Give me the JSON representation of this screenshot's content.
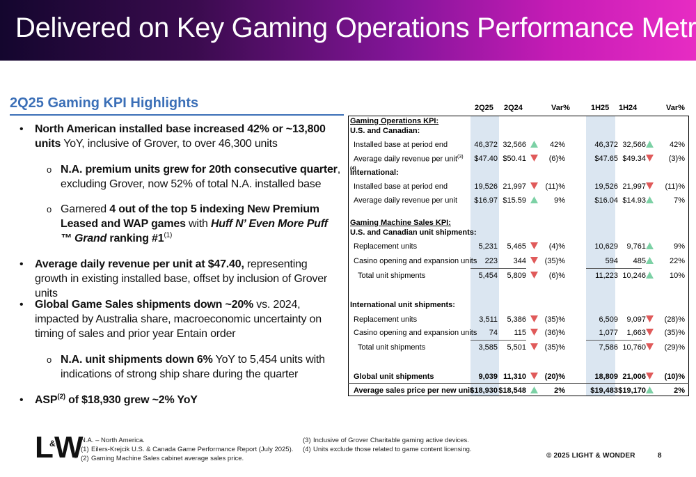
{
  "title": "Delivered on Key Gaming Operations Performance Metrics",
  "section_heading": "2Q25 Gaming KPI Highlights",
  "bullets": {
    "b1": {
      "bold": "North American installed base increased 42% or ~13,800 units",
      "rest": " YoY, inclusive of Grover, to over 46,300 units"
    },
    "b1a": {
      "bold": "N.A. premium units grew for 20th consecutive quarter",
      "rest": ", excluding Grover, now 52% of total N.A. installed base"
    },
    "b1b": {
      "pre": "Garnered ",
      "bold1": "4 out of the top 5 indexing New Premium Leased and WAP games",
      "mid": " with ",
      "italic": "Huff N’ Even More Puff ™ Grand",
      "bold2": " ranking #1",
      "sup": "(1)"
    },
    "b2": {
      "bold": "Average daily revenue per unit at $47.40,",
      "rest": " representing growth in existing installed base, offset by inclusion of Grover units"
    },
    "b3": {
      "bold": "Global Game Sales shipments down ~20%",
      "rest": " vs. 2024, impacted by Australia share, macroeconomic uncertainty on timing of sales and prior year Entain order"
    },
    "b3a": {
      "bold": "N.A. unit shipments down 6%",
      "rest": " YoY to 5,454 units with indications of strong ship share during the quarter"
    },
    "b4": {
      "pre": "ASP",
      "sup": "(2)",
      "post": " of $18,930 grew ~2% YoY"
    },
    "bullet_mark": "•",
    "sub_mark": "o"
  },
  "table": {
    "headers": {
      "q_cur": "2Q25",
      "q_prev": "2Q24",
      "q_var": "Var%",
      "h_cur": "1H25",
      "h_prev": "1H24",
      "h_var": "Var%"
    },
    "gaming_ops_kpi": "Gaming Operations KPI:",
    "us_canadian": "U.S. and Canadian:",
    "international": "International:",
    "international_sup": "(4)",
    "rows": {
      "us_installed": {
        "label": "Installed base at period end",
        "q_cur": "46,372",
        "q_prev": "32,566",
        "q_dir": "up",
        "q_var": "42%",
        "h_cur": "46,372",
        "h_prev": "32,566",
        "h_dir": "up",
        "h_var": "42%"
      },
      "us_adr": {
        "label": "Average daily revenue per unit",
        "sup": "(3)",
        "q_cur": "$47.40",
        "q_prev": "$50.41",
        "q_dir": "down",
        "q_var": "(6)%",
        "h_cur": "$47.65",
        "h_prev": "$49.34",
        "h_dir": "down",
        "h_var": "(3)%"
      },
      "intl_installed": {
        "label": "Installed base at period end",
        "q_cur": "19,526",
        "q_prev": "21,997",
        "q_dir": "down",
        "q_var": "(11)%",
        "h_cur": "19,526",
        "h_prev": "21,997",
        "h_dir": "down",
        "h_var": "(11)%"
      },
      "intl_adr": {
        "label": "Average daily revenue per unit",
        "q_cur": "$16.97",
        "q_prev": "$15.59",
        "q_dir": "up",
        "q_var": "9%",
        "h_cur": "$16.04",
        "h_prev": "$14.93",
        "h_dir": "up",
        "h_var": "7%"
      },
      "us_replacement": {
        "label": "Replacement units",
        "q_cur": "5,231",
        "q_prev": "5,465",
        "q_dir": "down",
        "q_var": "(4)%",
        "h_cur": "10,629",
        "h_prev": "9,761",
        "h_dir": "up",
        "h_var": "9%"
      },
      "us_casino": {
        "label": "Casino opening and expansion units",
        "q_cur": "223",
        "q_prev": "344",
        "q_dir": "down",
        "q_var": "(35)%",
        "h_cur": "594",
        "h_prev": "485",
        "h_dir": "up",
        "h_var": "22%"
      },
      "us_total": {
        "label": "Total unit shipments",
        "q_cur": "5,454",
        "q_prev": "5,809",
        "q_dir": "down",
        "q_var": "(6)%",
        "h_cur": "11,223",
        "h_prev": "10,246",
        "h_dir": "up",
        "h_var": "10%"
      },
      "intl_replacement": {
        "label": "Replacement units",
        "q_cur": "3,511",
        "q_prev": "5,386",
        "q_dir": "down",
        "q_var": "(35)%",
        "h_cur": "6,509",
        "h_prev": "9,097",
        "h_dir": "down",
        "h_var": "(28)%"
      },
      "intl_casino": {
        "label": "Casino opening and expansion units",
        "q_cur": "74",
        "q_prev": "115",
        "q_dir": "down",
        "q_var": "(36)%",
        "h_cur": "1,077",
        "h_prev": "1,663",
        "h_dir": "down",
        "h_var": "(35)%"
      },
      "intl_total": {
        "label": "Total unit shipments",
        "q_cur": "3,585",
        "q_prev": "5,501",
        "q_dir": "down",
        "q_var": "(35)%",
        "h_cur": "7,586",
        "h_prev": "10,760",
        "h_dir": "down",
        "h_var": "(29)%"
      },
      "global_units": {
        "label": "Global unit shipments",
        "q_cur": "9,039",
        "q_prev": "11,310",
        "q_dir": "down",
        "q_var": "(20)%",
        "h_cur": "18,809",
        "h_prev": "21,006",
        "h_dir": "down",
        "h_var": "(10)%"
      },
      "asp": {
        "label": "Average sales price per new unit",
        "q_cur": "$18,930",
        "q_prev": "$18,548",
        "q_dir": "up",
        "q_var": "2%",
        "h_cur": "$19,483",
        "h_prev": "$19,170",
        "h_dir": "up",
        "h_var": "2%"
      }
    },
    "machine_sales_kpi": "Gaming Machine Sales KPI:",
    "us_shipments": "U.S. and Canadian unit shipments:",
    "intl_shipments": "International unit shipments:"
  },
  "footnotes": {
    "na": "N.A. – North America.",
    "f1_n": "(1)",
    "f1": "Eilers-Krejcik U.S. & Canada Game Performance Report (July 2025).",
    "f2_n": "(2)",
    "f2": "Gaming Machine Sales cabinet average sales price.",
    "f3_n": "(3)",
    "f3": "Inclusive of Grover Charitable gaming active devices.",
    "f4_n": "(4)",
    "f4": "Units exclude those related to game content licensing."
  },
  "logo": {
    "l": "L",
    "amp": "&",
    "w": "W",
    "tm": "™"
  },
  "copyright": "© 2025 LIGHT & WONDER",
  "page_number": "8",
  "colors": {
    "accent_blue": "#3b6fb7",
    "table_shade": "#dbe6f1",
    "up_arrow": "#7cd1a5",
    "down_arrow": "#e05a5a"
  }
}
